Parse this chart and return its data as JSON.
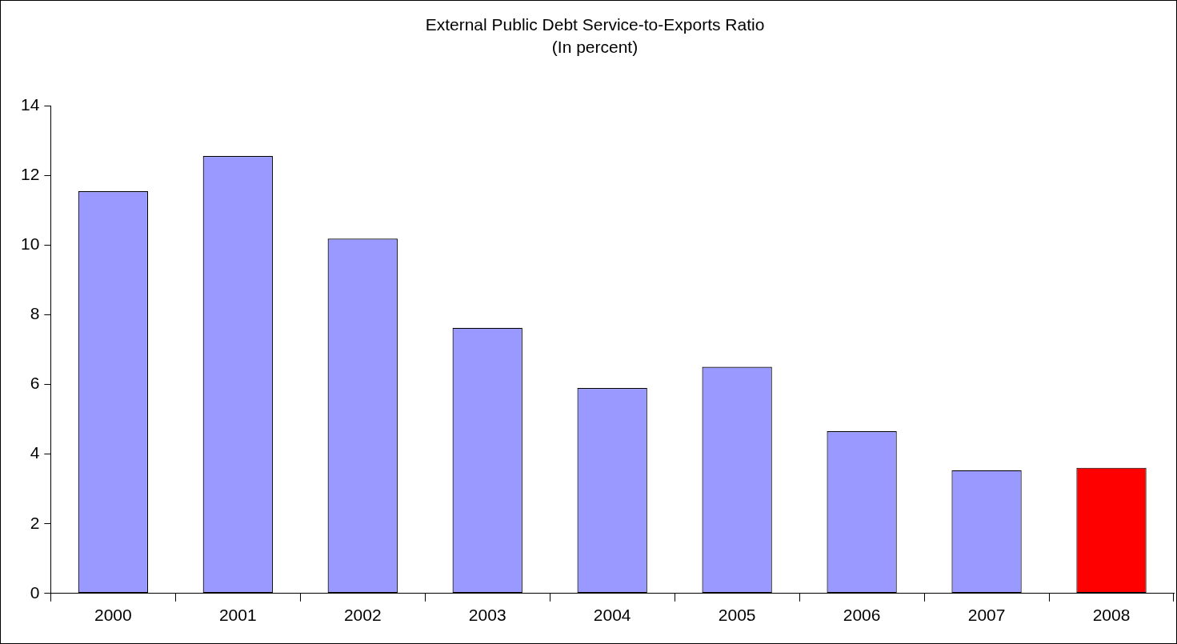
{
  "chart_data": {
    "type": "bar",
    "title": "External Public Debt Service-to-Exports Ratio",
    "subtitle": "(In percent)",
    "categories": [
      "2000",
      "2001",
      "2002",
      "2003",
      "2004",
      "2005",
      "2006",
      "2007",
      "2008"
    ],
    "values": [
      11.55,
      12.56,
      10.19,
      7.63,
      5.9,
      6.51,
      4.66,
      3.54,
      3.61
    ],
    "colors": [
      "#9999ff",
      "#9999ff",
      "#9999ff",
      "#9999ff",
      "#9999ff",
      "#9999ff",
      "#9999ff",
      "#9999ff",
      "#ff0000"
    ],
    "ylim": [
      0,
      14
    ],
    "yticks": [
      0,
      2,
      4,
      6,
      8,
      10,
      12,
      14
    ],
    "grid": false,
    "legend": false
  }
}
